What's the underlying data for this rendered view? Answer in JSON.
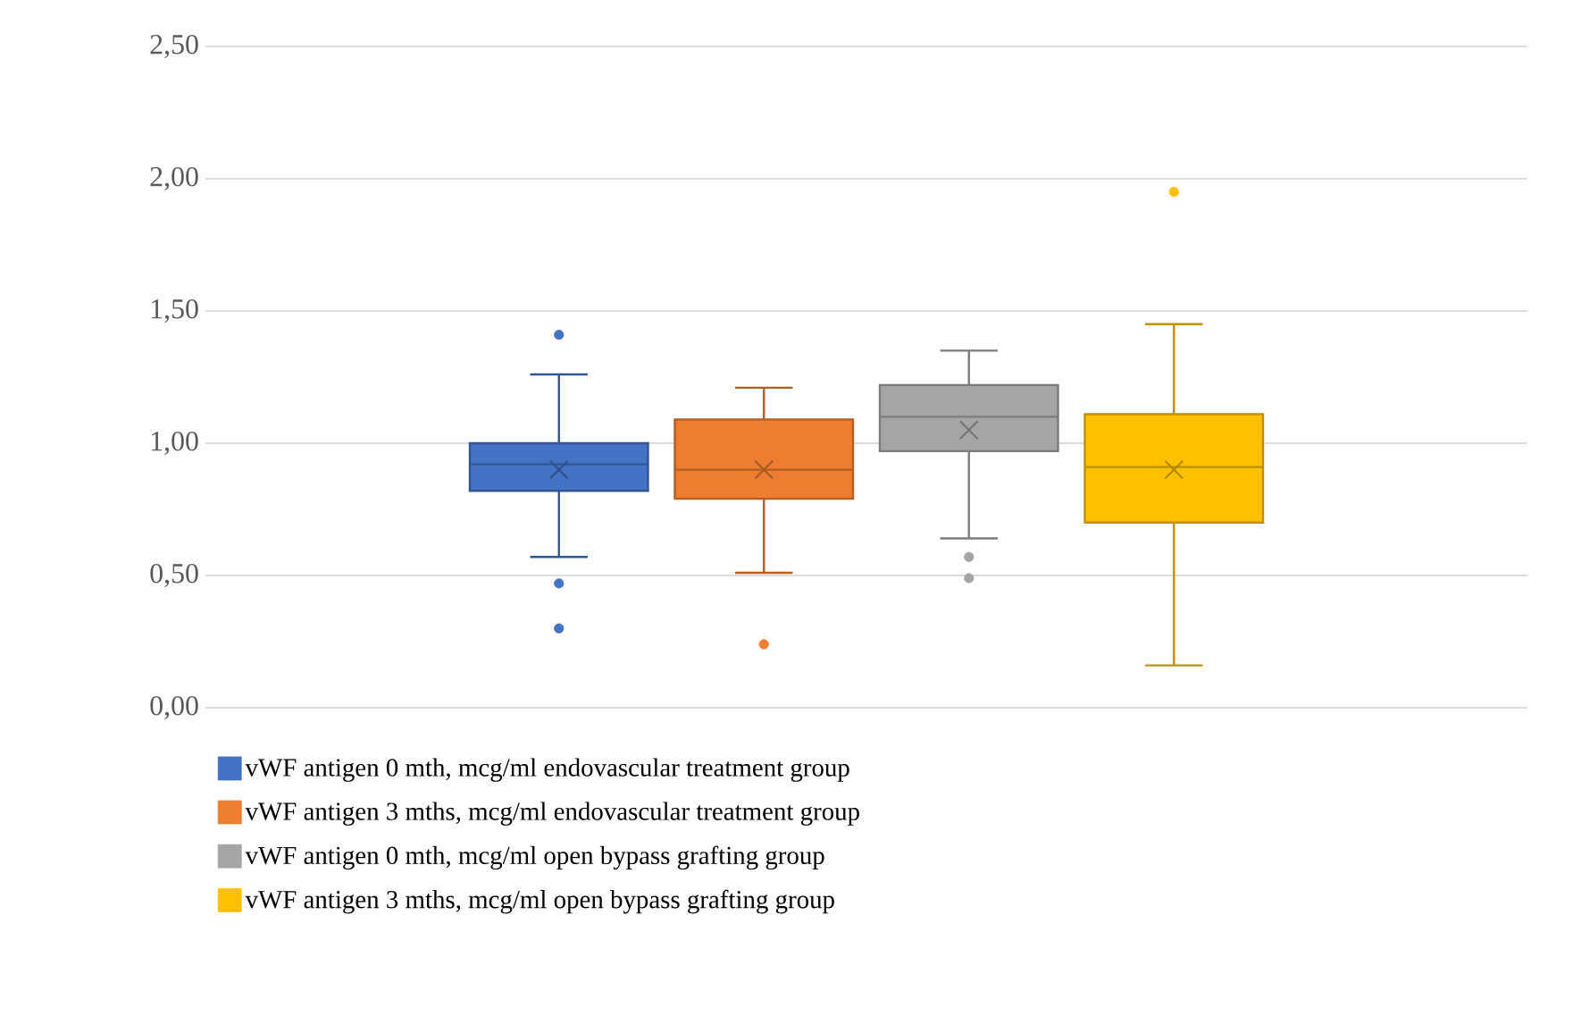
{
  "chart_data": {
    "type": "box",
    "categories": [
      null
    ],
    "series": [
      {
        "name": "vWF antigen 0 mth, mcg/ml endovascular treatment group",
        "color": "#4472c4",
        "boxes": [
          {
            "low": 0.57,
            "q1": 0.82,
            "median": 0.92,
            "q3": 1.0,
            "high": 1.26,
            "mean": 0.9,
            "outliers": [
              1.41,
              0.47,
              0.3
            ]
          }
        ]
      },
      {
        "name": "vWF antigen 3 mths, mcg/ml endovascular treatment group",
        "color": "#ed7d31",
        "boxes": [
          {
            "low": 0.51,
            "q1": 0.79,
            "median": 0.9,
            "q3": 1.09,
            "high": 1.21,
            "mean": 0.9,
            "outliers": [
              0.24
            ]
          }
        ]
      },
      {
        "name": "vWF antigen 0 mth, mcg/ml open bypass grafting group",
        "color": "#a5a5a5",
        "boxes": [
          {
            "low": 0.64,
            "q1": 0.97,
            "median": 1.1,
            "q3": 1.22,
            "high": 1.35,
            "mean": 1.05,
            "outliers": [
              0.57,
              0.49
            ]
          }
        ]
      },
      {
        "name": "vWF antigen 3 mths, mcg/ml open bypass grafting group",
        "color": "#ffc000",
        "boxes": [
          {
            "low": 0.16,
            "q1": 0.7,
            "median": 0.91,
            "q3": 1.11,
            "high": 1.45,
            "mean": 0.9,
            "outliers": [
              1.95
            ]
          }
        ]
      }
    ],
    "ylim": [
      0,
      2.5
    ],
    "yticks": [
      {
        "value": 0,
        "label": "0,00"
      },
      {
        "value": 0.5,
        "label": "0,50"
      },
      {
        "value": 1,
        "label": "1,00"
      },
      {
        "value": 1.5,
        "label": "1,50"
      },
      {
        "value": 2,
        "label": "2,00"
      },
      {
        "value": 2.5,
        "label": "2,50"
      }
    ],
    "grid": "y",
    "legend": "bottom",
    "tick_labels": "y",
    "marker": "circle"
  }
}
